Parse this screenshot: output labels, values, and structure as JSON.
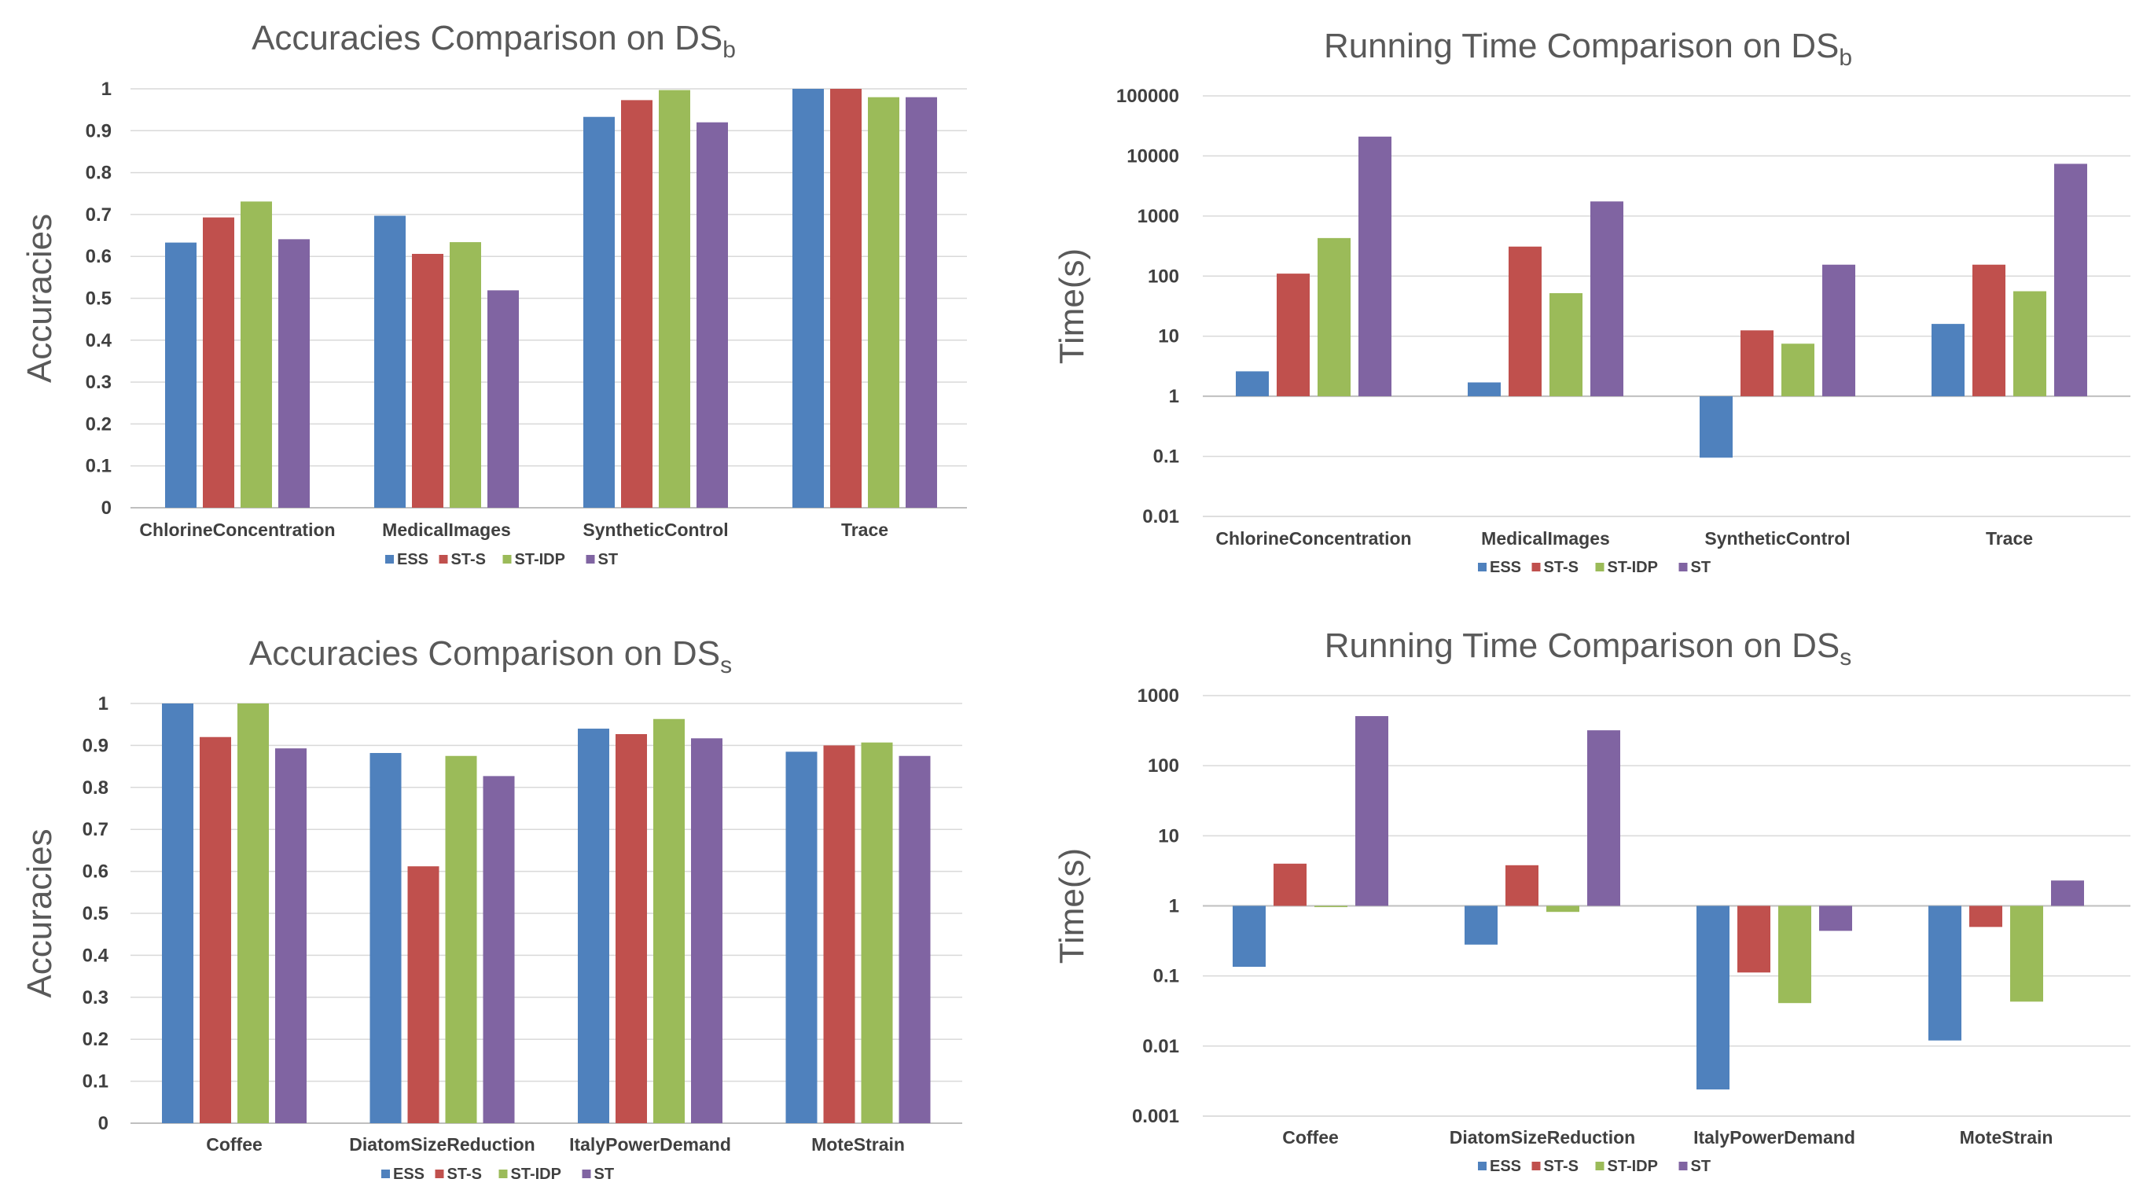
{
  "legend_colors": {
    "ESS": "#4f81bd",
    "ST-S": "#c0504d",
    "ST-IDP": "#9bbb59",
    "ST": "#8064a2"
  },
  "chart_data": [
    {
      "type": "bar",
      "title": "Accuracies Comparison on DS",
      "title_subscript": "b",
      "ylabel": "Accuracies",
      "ylim": [
        0,
        1
      ],
      "yscale": "linear",
      "yticks": [
        "0",
        "0.1",
        "0.2",
        "0.3",
        "0.4",
        "0.5",
        "0.6",
        "0.7",
        "0.8",
        "0.9",
        "1"
      ],
      "grid": true,
      "legend_position": "bottom",
      "categories": [
        "ChlorineConcentration",
        "MedicalImages",
        "SyntheticControl",
        "Trace"
      ],
      "series": [
        {
          "name": "ESS",
          "values": [
            0.633,
            0.697,
            0.933,
            1.0
          ]
        },
        {
          "name": "ST-S",
          "values": [
            0.693,
            0.606,
            0.973,
            1.0
          ]
        },
        {
          "name": "ST-IDP",
          "values": [
            0.731,
            0.634,
            0.997,
            0.98
          ]
        },
        {
          "name": "ST",
          "values": [
            0.641,
            0.519,
            0.92,
            0.98
          ]
        }
      ]
    },
    {
      "type": "bar",
      "title": "Running Time Comparison on DS",
      "title_subscript": "b",
      "ylabel": "Time(s)",
      "ylim": [
        0.01,
        100000
      ],
      "yscale": "log",
      "ybase": 1,
      "yticks": [
        "0.01",
        "0.1",
        "1",
        "10",
        "100",
        "1000",
        "10000",
        "100000"
      ],
      "grid": true,
      "legend_position": "bottom",
      "categories": [
        "ChlorineConcentration",
        "MedicalImages",
        "SyntheticControl",
        "Trace"
      ],
      "series": [
        {
          "name": "ESS",
          "values": [
            2.6,
            1.7,
            0.095,
            16
          ]
        },
        {
          "name": "ST-S",
          "values": [
            110,
            310,
            12.5,
            155
          ]
        },
        {
          "name": "ST-IDP",
          "values": [
            430,
            52,
            7.5,
            56
          ]
        },
        {
          "name": "ST",
          "values": [
            21000,
            1750,
            155,
            7400
          ]
        }
      ]
    },
    {
      "type": "bar",
      "title": "Accuracies Comparison on DS",
      "title_subscript": "s",
      "ylabel": "Accuracies",
      "ylim": [
        0,
        1
      ],
      "yscale": "linear",
      "yticks": [
        "0",
        "0.1",
        "0.2",
        "0.3",
        "0.4",
        "0.5",
        "0.6",
        "0.7",
        "0.8",
        "0.9",
        "1"
      ],
      "grid": true,
      "legend_position": "bottom",
      "categories": [
        "Coffee",
        "DiatomSizeReduction",
        "ItalyPowerDemand",
        "MoteStrain"
      ],
      "series": [
        {
          "name": "ESS",
          "values": [
            1.0,
            0.882,
            0.94,
            0.885
          ]
        },
        {
          "name": "ST-S",
          "values": [
            0.92,
            0.612,
            0.927,
            0.9
          ]
        },
        {
          "name": "ST-IDP",
          "values": [
            1.0,
            0.875,
            0.963,
            0.907
          ]
        },
        {
          "name": "ST",
          "values": [
            0.893,
            0.827,
            0.917,
            0.875
          ]
        }
      ]
    },
    {
      "type": "bar",
      "title": "Running Time Comparison on DS",
      "title_subscript": "s",
      "ylabel": "Time(s)",
      "ylim": [
        0.001,
        1000
      ],
      "yscale": "log",
      "ybase": 1,
      "yticks": [
        "0.001",
        "0.01",
        "0.1",
        "1",
        "10",
        "100",
        "1000"
      ],
      "grid": true,
      "legend_position": "bottom",
      "categories": [
        "Coffee",
        "DiatomSizeReduction",
        "ItalyPowerDemand",
        "MoteStrain"
      ],
      "series": [
        {
          "name": "ESS",
          "values": [
            0.135,
            0.28,
            0.0024,
            0.012
          ]
        },
        {
          "name": "ST-S",
          "values": [
            4.0,
            3.8,
            0.112,
            0.5
          ]
        },
        {
          "name": "ST-IDP",
          "values": [
            0.96,
            0.82,
            0.041,
            0.043
          ]
        },
        {
          "name": "ST",
          "values": [
            510,
            320,
            0.44,
            2.3
          ]
        }
      ]
    }
  ]
}
